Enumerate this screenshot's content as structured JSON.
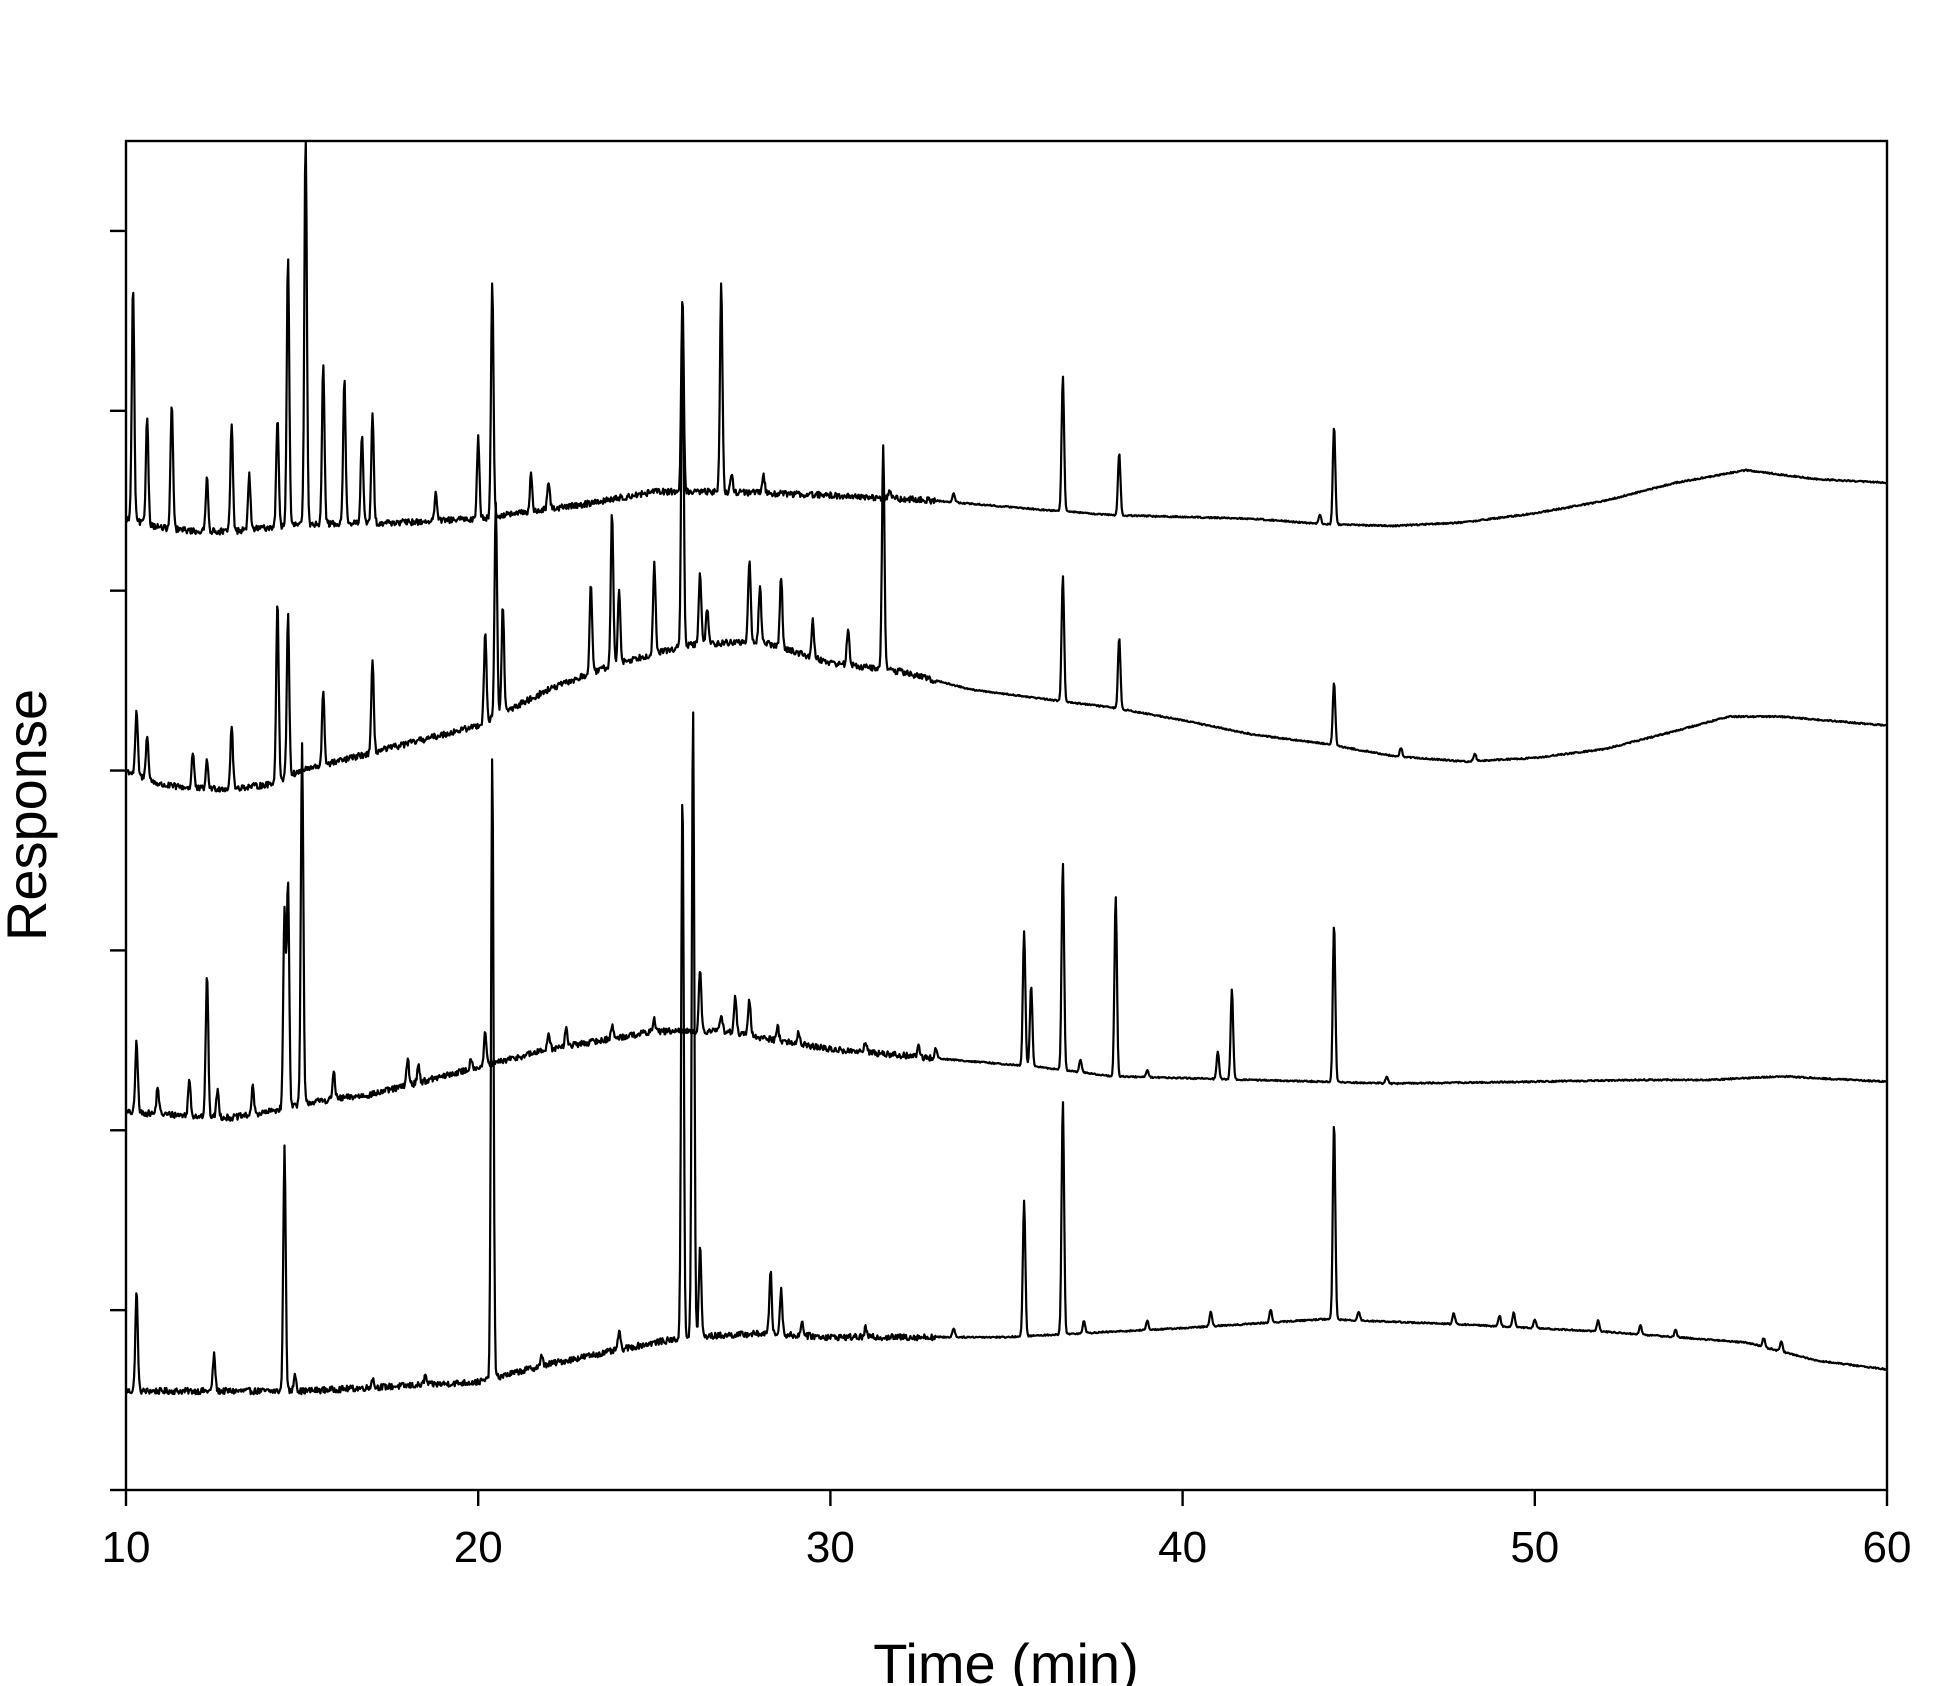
{
  "chart_data": {
    "type": "line",
    "title": "",
    "xlabel": "Time (min)",
    "ylabel": "Response",
    "xlim": [
      10,
      60
    ],
    "ylim": [
      0,
      7.5
    ],
    "x_ticks": [
      10,
      20,
      30,
      40,
      50,
      60
    ],
    "y_ticks": [
      0,
      1,
      2,
      3,
      4,
      5,
      6,
      7
    ],
    "y_tick_labels_shown": false,
    "grid": false,
    "legend": "none",
    "line_color": "#000000",
    "series": [
      {
        "baseline": [
          [
            10,
            0.55
          ],
          [
            15,
            0.55
          ],
          [
            20,
            0.6
          ],
          [
            22,
            0.7
          ],
          [
            25,
            0.82
          ],
          [
            26,
            0.85
          ],
          [
            28,
            0.87
          ],
          [
            30,
            0.85
          ],
          [
            35,
            0.85
          ],
          [
            40,
            0.9
          ],
          [
            44,
            0.95
          ],
          [
            48,
            0.92
          ],
          [
            52,
            0.88
          ],
          [
            56,
            0.82
          ],
          [
            58,
            0.72
          ],
          [
            60,
            0.67
          ]
        ],
        "peaks": [
          [
            10.3,
            0.55
          ],
          [
            12.5,
            0.2
          ],
          [
            14.5,
            1.35
          ],
          [
            14.8,
            0.1
          ],
          [
            17,
            0.05
          ],
          [
            18.5,
            0.05
          ],
          [
            20.4,
            3.45
          ],
          [
            21.8,
            0.05
          ],
          [
            24,
            0.1
          ],
          [
            25.8,
            3.05
          ],
          [
            26.1,
            3.5
          ],
          [
            26.3,
            0.5
          ],
          [
            28.3,
            0.35
          ],
          [
            28.6,
            0.25
          ],
          [
            29.2,
            0.08
          ],
          [
            31,
            0.05
          ],
          [
            33.5,
            0.05
          ],
          [
            35.5,
            0.75
          ],
          [
            36.6,
            1.3
          ],
          [
            37.2,
            0.07
          ],
          [
            39,
            0.05
          ],
          [
            40.8,
            0.08
          ],
          [
            42.5,
            0.07
          ],
          [
            44.3,
            1.1
          ],
          [
            45,
            0.05
          ],
          [
            47.7,
            0.06
          ],
          [
            49,
            0.06
          ],
          [
            49.4,
            0.08
          ],
          [
            50,
            0.05
          ],
          [
            51.8,
            0.06
          ],
          [
            53,
            0.05
          ],
          [
            54,
            0.04
          ],
          [
            56.5,
            0.05
          ],
          [
            57,
            0.06
          ]
        ]
      },
      {
        "baseline": [
          [
            10,
            2.1
          ],
          [
            13,
            2.07
          ],
          [
            14,
            2.1
          ],
          [
            15,
            2.15
          ],
          [
            17,
            2.2
          ],
          [
            20,
            2.35
          ],
          [
            22,
            2.45
          ],
          [
            25,
            2.55
          ],
          [
            27,
            2.55
          ],
          [
            30,
            2.45
          ],
          [
            33,
            2.4
          ],
          [
            36,
            2.35
          ],
          [
            38,
            2.3
          ],
          [
            42,
            2.28
          ],
          [
            46,
            2.26
          ],
          [
            50,
            2.27
          ],
          [
            53,
            2.28
          ],
          [
            55,
            2.28
          ],
          [
            57,
            2.3
          ],
          [
            60,
            2.27
          ]
        ],
        "peaks": [
          [
            10.3,
            0.4
          ],
          [
            10.9,
            0.15
          ],
          [
            11.8,
            0.2
          ],
          [
            12.3,
            0.8
          ],
          [
            12.6,
            0.15
          ],
          [
            13.6,
            0.15
          ],
          [
            14.5,
            1.1
          ],
          [
            14.6,
            1.25
          ],
          [
            15,
            2.0
          ],
          [
            15.9,
            0.15
          ],
          [
            18,
            0.15
          ],
          [
            18.3,
            0.1
          ],
          [
            19.8,
            0.06
          ],
          [
            20.2,
            0.18
          ],
          [
            22,
            0.1
          ],
          [
            22.5,
            0.1
          ],
          [
            23.8,
            0.07
          ],
          [
            25,
            0.07
          ],
          [
            26.3,
            0.35
          ],
          [
            26.9,
            0.1
          ],
          [
            27.3,
            0.2
          ],
          [
            27.7,
            0.2
          ],
          [
            28.5,
            0.08
          ],
          [
            29.1,
            0.07
          ],
          [
            31,
            0.06
          ],
          [
            32.5,
            0.06
          ],
          [
            33,
            0.05
          ],
          [
            35.5,
            0.75
          ],
          [
            35.7,
            0.45
          ],
          [
            36.6,
            1.15
          ],
          [
            37.1,
            0.07
          ],
          [
            38.1,
            1.0
          ],
          [
            39,
            0.04
          ],
          [
            41,
            0.15
          ],
          [
            41.4,
            0.5
          ],
          [
            44.3,
            0.88
          ],
          [
            45.8,
            0.04
          ]
        ]
      },
      {
        "baseline": [
          [
            10,
            4.0
          ],
          [
            11,
            3.92
          ],
          [
            12,
            3.9
          ],
          [
            13,
            3.9
          ],
          [
            14,
            3.92
          ],
          [
            15,
            4.0
          ],
          [
            17,
            4.1
          ],
          [
            20,
            4.25
          ],
          [
            22,
            4.45
          ],
          [
            24,
            4.6
          ],
          [
            26,
            4.7
          ],
          [
            28,
            4.72
          ],
          [
            30,
            4.6
          ],
          [
            32,
            4.55
          ],
          [
            34,
            4.45
          ],
          [
            36,
            4.4
          ],
          [
            38,
            4.35
          ],
          [
            40,
            4.28
          ],
          [
            42,
            4.2
          ],
          [
            44,
            4.15
          ],
          [
            46,
            4.08
          ],
          [
            48,
            4.05
          ],
          [
            50,
            4.07
          ],
          [
            52,
            4.12
          ],
          [
            54,
            4.22
          ],
          [
            55.5,
            4.3
          ],
          [
            57,
            4.3
          ],
          [
            60,
            4.25
          ]
        ],
        "peaks": [
          [
            10.3,
            0.35
          ],
          [
            10.6,
            0.25
          ],
          [
            11.9,
            0.2
          ],
          [
            12.3,
            0.15
          ],
          [
            13,
            0.35
          ],
          [
            14.3,
            1.0
          ],
          [
            14.6,
            0.9
          ],
          [
            15.6,
            0.4
          ],
          [
            17,
            0.5
          ],
          [
            20.2,
            0.5
          ],
          [
            20.5,
            1.2
          ],
          [
            20.7,
            0.6
          ],
          [
            23.2,
            0.5
          ],
          [
            23.8,
            0.85
          ],
          [
            24,
            0.4
          ],
          [
            25,
            0.5
          ],
          [
            25.8,
            1.7
          ],
          [
            26.3,
            0.4
          ],
          [
            26.5,
            0.2
          ],
          [
            27.7,
            0.45
          ],
          [
            28,
            0.3
          ],
          [
            28.6,
            0.4
          ],
          [
            29.5,
            0.2
          ],
          [
            30.5,
            0.2
          ],
          [
            31.5,
            1.25
          ],
          [
            36.6,
            0.7
          ],
          [
            38.2,
            0.4
          ],
          [
            44.3,
            0.35
          ],
          [
            46.2,
            0.05
          ],
          [
            48.3,
            0.04
          ]
        ]
      },
      {
        "baseline": [
          [
            10,
            5.4
          ],
          [
            11,
            5.35
          ],
          [
            12,
            5.33
          ],
          [
            13,
            5.33
          ],
          [
            14,
            5.35
          ],
          [
            15,
            5.37
          ],
          [
            18,
            5.38
          ],
          [
            20,
            5.4
          ],
          [
            23,
            5.48
          ],
          [
            25,
            5.55
          ],
          [
            27,
            5.55
          ],
          [
            30,
            5.53
          ],
          [
            33,
            5.5
          ],
          [
            36,
            5.45
          ],
          [
            38,
            5.42
          ],
          [
            42,
            5.4
          ],
          [
            44,
            5.37
          ],
          [
            46,
            5.36
          ],
          [
            48,
            5.38
          ],
          [
            50,
            5.43
          ],
          [
            52,
            5.5
          ],
          [
            54,
            5.6
          ],
          [
            56,
            5.67
          ],
          [
            58,
            5.62
          ],
          [
            60,
            5.6
          ]
        ],
        "peaks": [
          [
            10.2,
            1.3
          ],
          [
            10.6,
            0.6
          ],
          [
            11.3,
            0.7
          ],
          [
            12.3,
            0.3
          ],
          [
            13,
            0.6
          ],
          [
            13.5,
            0.3
          ],
          [
            14.3,
            0.6
          ],
          [
            14.6,
            1.5
          ],
          [
            15.1,
            2.2
          ],
          [
            15.6,
            0.9
          ],
          [
            16.2,
            0.8
          ],
          [
            16.7,
            0.5
          ],
          [
            17,
            0.6
          ],
          [
            18.8,
            0.15
          ],
          [
            20,
            0.45
          ],
          [
            20.4,
            1.3
          ],
          [
            21.5,
            0.2
          ],
          [
            22,
            0.15
          ],
          [
            25.8,
            1.1
          ],
          [
            26.9,
            1.15
          ],
          [
            27.2,
            0.1
          ],
          [
            28.1,
            0.1
          ],
          [
            31.7,
            0.05
          ],
          [
            33.5,
            0.05
          ],
          [
            36.6,
            0.75
          ],
          [
            38.2,
            0.35
          ],
          [
            44.3,
            0.55
          ],
          [
            43.9,
            0.05
          ]
        ]
      }
    ]
  }
}
